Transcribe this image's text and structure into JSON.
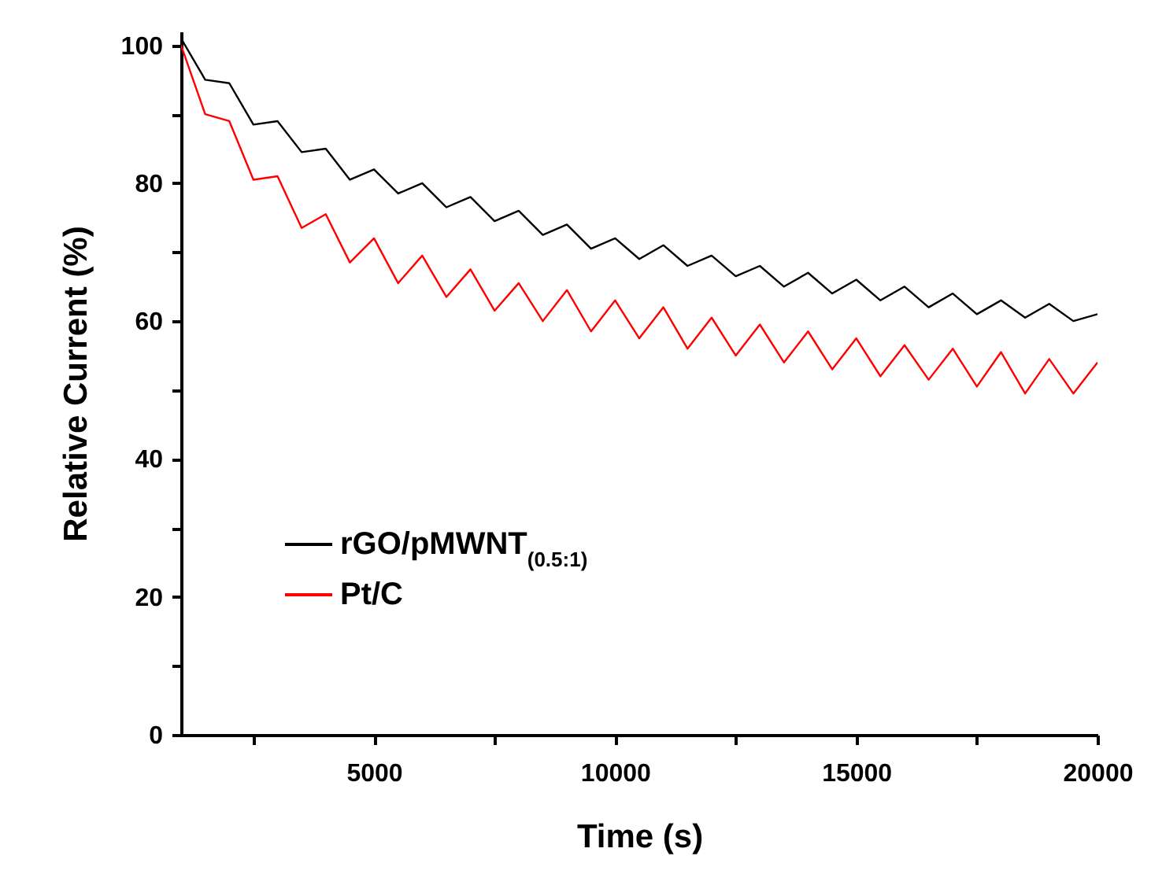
{
  "chart_data": {
    "type": "line",
    "xlabel": "Time (s)",
    "ylabel": "Relative Current (%)",
    "x": [
      1000,
      1500,
      2000,
      2500,
      3000,
      3500,
      4000,
      4500,
      5000,
      5500,
      6000,
      6500,
      7000,
      7500,
      8000,
      8500,
      9000,
      9500,
      10000,
      10500,
      11000,
      11500,
      12000,
      12500,
      13000,
      13500,
      14000,
      14500,
      15000,
      15500,
      16000,
      16500,
      17000,
      17500,
      18000,
      18500,
      19000,
      19500,
      20000
    ],
    "series": [
      {
        "name": "rGO/pMWNT$_{(0.5:1)}$",
        "color": "#000000",
        "values": [
          101,
          95,
          94.5,
          88.5,
          89,
          84.5,
          85,
          80.5,
          82,
          78.5,
          80,
          76.5,
          78,
          74.5,
          76,
          72.5,
          74,
          70.5,
          72,
          69,
          71,
          68,
          69.5,
          66.5,
          68,
          65,
          67,
          64,
          66,
          63,
          65,
          62,
          64,
          61,
          63,
          60.5,
          62.5,
          60,
          61
        ]
      },
      {
        "name": "Pt/C",
        "color": "#ff0000",
        "values": [
          100,
          90,
          89,
          80.5,
          81,
          73.5,
          75.5,
          68.5,
          72,
          65.5,
          69.5,
          63.5,
          67.5,
          61.5,
          65.5,
          60,
          64.5,
          58.5,
          63,
          57.5,
          62,
          56,
          60.5,
          55,
          59.5,
          54,
          58.5,
          53,
          57.5,
          52,
          56.5,
          51.5,
          56,
          50.5,
          55.5,
          49.5,
          54.5,
          49.5,
          54
        ]
      }
    ],
    "xlim": [
      1000,
      20000
    ],
    "ylim": [
      0,
      102
    ],
    "xticks": [
      {
        "value": 2500,
        "label": null
      },
      5000,
      {
        "value": 7500,
        "label": null
      },
      10000,
      {
        "value": 12500,
        "label": null
      },
      15000,
      {
        "value": 17500,
        "label": null
      },
      20000
    ],
    "yticks": [
      0,
      {
        "value": 10,
        "label": null
      },
      20,
      {
        "value": 30,
        "label": null
      },
      40,
      {
        "value": 50,
        "label": null
      },
      60,
      {
        "value": 70,
        "label": null
      },
      80,
      {
        "value": 90,
        "label": null
      },
      100
    ],
    "legend": "bottom left",
    "grid": false,
    "line_style": "solid",
    "marker": "none"
  }
}
